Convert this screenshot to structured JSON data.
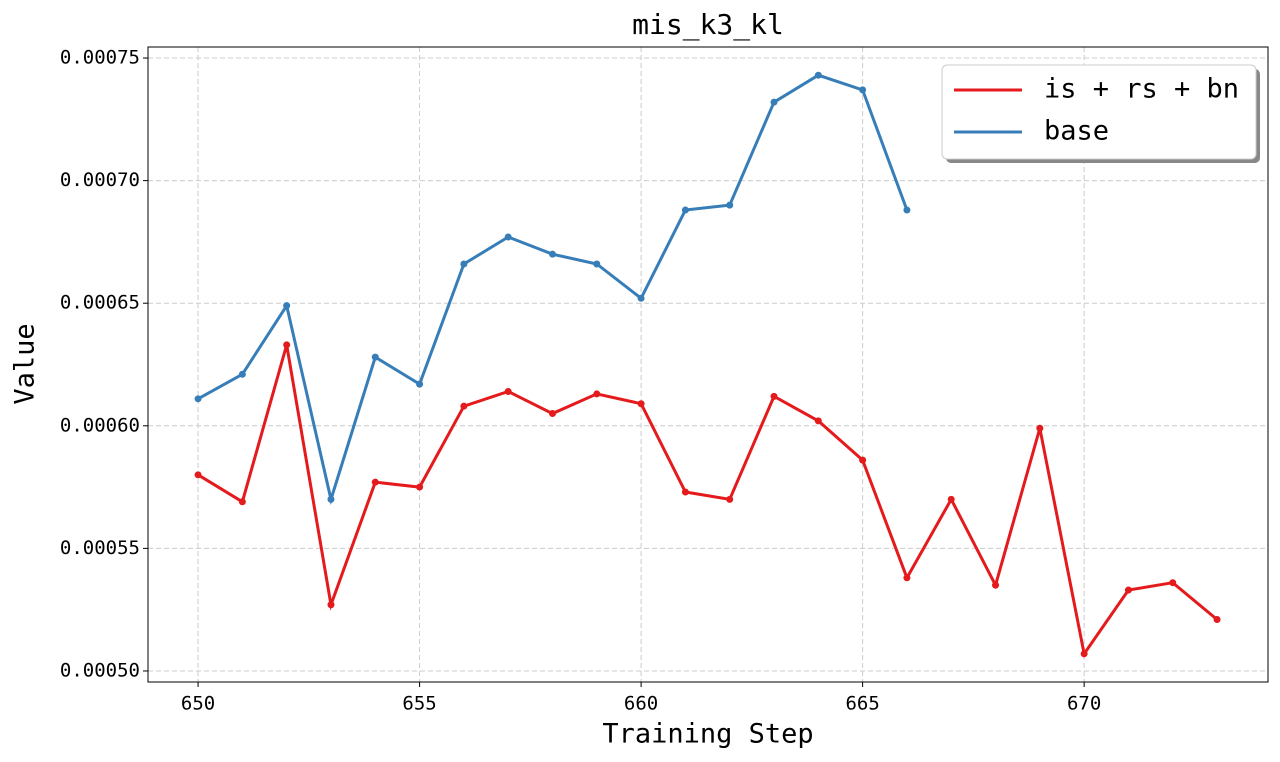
{
  "chart_data": {
    "type": "line",
    "title": "mis_k3_kl",
    "x_label": "Training Step",
    "y_label": "Value",
    "x": [
      650,
      651,
      652,
      653,
      654,
      655,
      656,
      657,
      658,
      659,
      660,
      661,
      662,
      663,
      664,
      665,
      666,
      667,
      668,
      669,
      670,
      671,
      672,
      673
    ],
    "series": [
      {
        "name": "is + rs + bn",
        "color": "#e41a1c",
        "values": [
          0.00058,
          0.000569,
          0.000633,
          0.000527,
          0.000577,
          0.000575,
          0.000608,
          0.000614,
          0.000605,
          0.000613,
          0.000609,
          0.000573,
          0.00057,
          0.000612,
          0.000602,
          0.000586,
          0.000538,
          0.00057,
          0.000535,
          0.000599,
          0.000507,
          0.000533,
          0.000536,
          0.000521
        ]
      },
      {
        "name": "base",
        "color": "#377eb8",
        "values": [
          0.000611,
          0.000621,
          0.000649,
          0.00057,
          0.000628,
          0.000617,
          0.000666,
          0.000677,
          0.00067,
          0.000666,
          0.000652,
          0.000688,
          0.00069,
          0.000732,
          0.000743,
          0.000737,
          0.000688,
          null,
          null,
          null,
          null,
          null,
          null,
          null
        ]
      }
    ],
    "xlim": [
      648.87,
      674.15
    ],
    "xticks": [
      650,
      655,
      660,
      665,
      670
    ],
    "ylim": [
      0.0004955,
      0.0007545
    ],
    "yticks": [
      {
        "value": 0.0005,
        "label": "0.00050"
      },
      0.00055,
      {
        "value": 0.0006,
        "label": "0.00060"
      },
      0.00065,
      {
        "value": 0.0007,
        "label": "0.00070"
      },
      0.00075
    ],
    "grid": true,
    "legend": "upper right"
  }
}
